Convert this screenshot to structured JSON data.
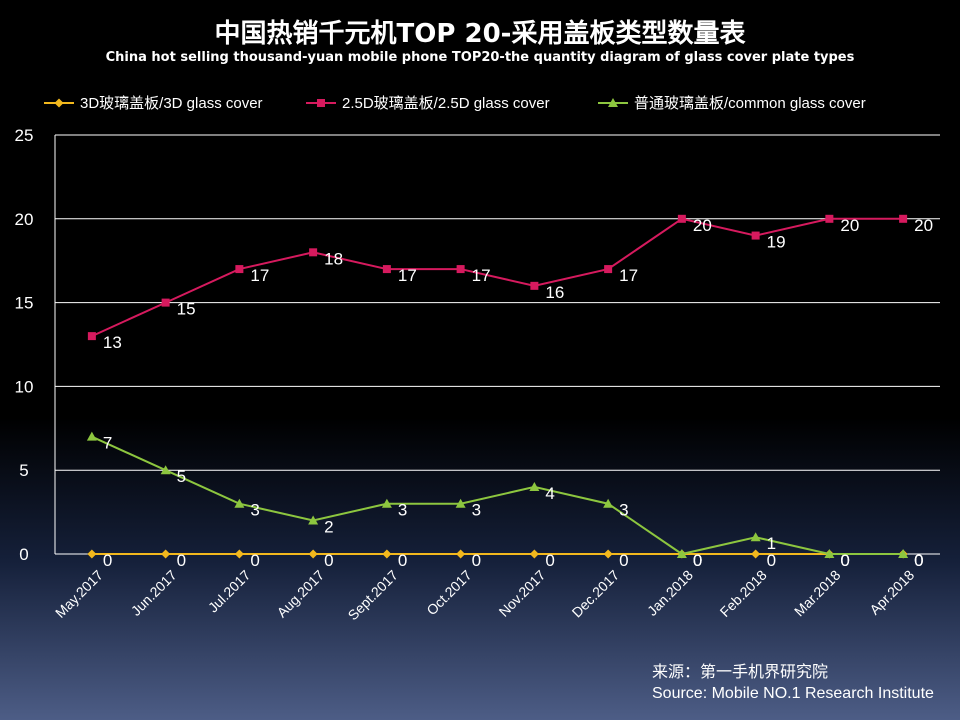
{
  "title": "中国热销千元机TOP 20-采用盖板类型数量表",
  "subtitle": "China hot selling thousand-yuan mobile phone TOP20-the quantity diagram of glass cover plate types",
  "source_cn": "来源：第一手机界研究院",
  "source_en": "Source: Mobile NO.1 Research Institute",
  "chart_data": {
    "type": "line",
    "title": "中国热销千元机TOP 20-采用盖板类型数量表",
    "subtitle": "China hot selling thousand-yuan mobile phone TOP20-the quantity diagram of glass cover plate types",
    "xlabel": "",
    "ylabel": "",
    "ylim": [
      0,
      25
    ],
    "yticks": [
      0,
      5,
      10,
      15,
      20,
      25
    ],
    "grid": true,
    "legend_position": "top",
    "categories": [
      "May.2017",
      "Jun.2017",
      "Jul.2017",
      "Aug.2017",
      "Sept.2017",
      "Oct.2017",
      "Nov.2017",
      "Dec.2017",
      "Jan.2018",
      "Feb.2018",
      "Mar.2018",
      "Apr.2018"
    ],
    "series": [
      {
        "name": "3D玻璃盖板/3D glass cover",
        "color": "#f2b81d",
        "marker": "diamond",
        "values": [
          0,
          0,
          0,
          0,
          0,
          0,
          0,
          0,
          0,
          0,
          0,
          0
        ]
      },
      {
        "name": "2.5D玻璃盖板/2.5D glass cover",
        "color": "#d61a5e",
        "marker": "square",
        "values": [
          13,
          15,
          17,
          18,
          17,
          17,
          16,
          17,
          20,
          19,
          20,
          20
        ]
      },
      {
        "name": "普通玻璃盖板/common glass cover",
        "color": "#8dc63f",
        "marker": "triangle",
        "values": [
          7,
          5,
          3,
          2,
          3,
          3,
          4,
          3,
          0,
          1,
          0,
          0
        ]
      }
    ]
  }
}
